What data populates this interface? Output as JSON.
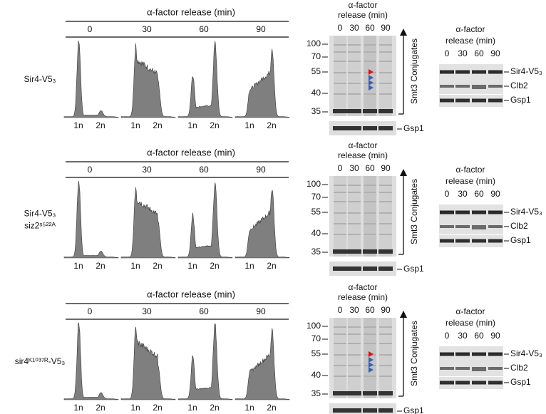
{
  "panels": [
    {
      "strain": [
        "Sir4-V5₃"
      ],
      "flow": {
        "header": "α-factor release (min)",
        "times": [
          "0",
          "30",
          "60",
          "90"
        ],
        "peaks": [
          "1n",
          "2n"
        ]
      },
      "smt3_blot": {
        "header": [
          "α-factor",
          "release (min)"
        ],
        "lanes": [
          "0",
          "30",
          "60",
          "90"
        ],
        "markers": [
          "100",
          "70",
          "55",
          "40",
          "35"
        ],
        "conjugates": "Smt3 Conjugates",
        "loading": "Gsp1"
      },
      "side_blot": {
        "header": [
          "α-factor",
          "release (min)"
        ],
        "lanes": [
          "0",
          "30",
          "60",
          "90"
        ],
        "bands": [
          "Sir4-V5₃",
          "Clb2",
          "Gsp1"
        ]
      }
    },
    {
      "strain": [
        "Sir4-V5₃",
        "siz2ˢ⁵²²ᴬ"
      ],
      "flow": {
        "header": "α-factor release (min)",
        "times": [
          "0",
          "30",
          "60",
          "90"
        ],
        "peaks": [
          "1n",
          "2n"
        ]
      },
      "smt3_blot": {
        "header": [
          "α-factor",
          "release (min)"
        ],
        "lanes": [
          "0",
          "30",
          "60",
          "90"
        ],
        "markers": [
          "100",
          "70",
          "55",
          "40",
          "35"
        ],
        "conjugates": "Smt3 Conjugates",
        "loading": "Gsp1"
      },
      "side_blot": {
        "header": [
          "α-factor",
          "release (min)"
        ],
        "lanes": [
          "0",
          "30",
          "60",
          "90"
        ],
        "bands": [
          "Sir4-V5₃",
          "Clb2",
          "Gsp1"
        ]
      }
    },
    {
      "strain": [
        "sir4ᴷ¹⁰³⁷ᴿ-V5₃"
      ],
      "flow": {
        "header": "α-factor release (min)",
        "times": [
          "0",
          "30",
          "60",
          "90"
        ],
        "peaks": [
          "1n",
          "2n"
        ]
      },
      "smt3_blot": {
        "header": [
          "α-factor",
          "release (min)"
        ],
        "lanes": [
          "0",
          "30",
          "60",
          "90"
        ],
        "markers": [
          "100",
          "70",
          "55",
          "40",
          "35"
        ],
        "conjugates": "Smt3 Conjugates",
        "loading": "Gsp1"
      },
      "side_blot": {
        "header": [
          "α-factor",
          "release (min)"
        ],
        "lanes": [
          "0",
          "30",
          "60",
          "90"
        ],
        "bands": [
          "Sir4-V5₃",
          "Clb2",
          "Gsp1"
        ]
      }
    }
  ]
}
